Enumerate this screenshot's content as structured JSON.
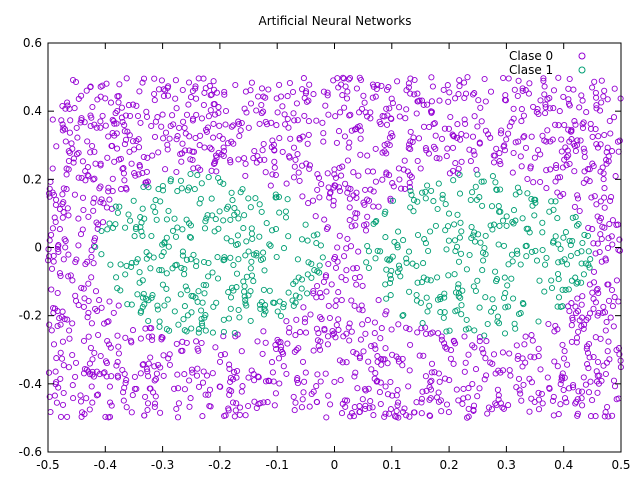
{
  "chart_data": {
    "type": "scatter",
    "title": "Artificial Neural Networks",
    "xlabel": "",
    "ylabel": "",
    "xlim": [
      -0.5,
      0.5
    ],
    "ylim": [
      -0.6,
      0.6
    ],
    "x_ticks": [
      "-0.5",
      "-0.4",
      "-0.3",
      "-0.2",
      "-0.1",
      "0",
      "0.1",
      "0.2",
      "0.3",
      "0.4",
      "0.5"
    ],
    "y_ticks": [
      "-0.6",
      "-0.4",
      "-0.2",
      "0",
      "0.2",
      "0.4",
      "0.6"
    ],
    "grid": false,
    "legend_position": "top-right",
    "series": [
      {
        "name": "Clase 0",
        "color": "#9400d3",
        "marker": "circle-open",
        "x_range": [
          -0.5,
          0.5
        ],
        "y_range": [
          -0.5,
          0.5
        ],
        "count": 1700,
        "description_region": "uniform over square excluding two ellipses"
      },
      {
        "name": "Clase 1",
        "color": "#009e73",
        "marker": "circle-open",
        "regions": [
          {
            "cx": -0.22,
            "cy": -0.02,
            "rx": 0.2,
            "ry": 0.24
          },
          {
            "cx": 0.25,
            "cy": -0.02,
            "rx": 0.2,
            "ry": 0.24
          }
        ],
        "count": 600
      }
    ]
  }
}
